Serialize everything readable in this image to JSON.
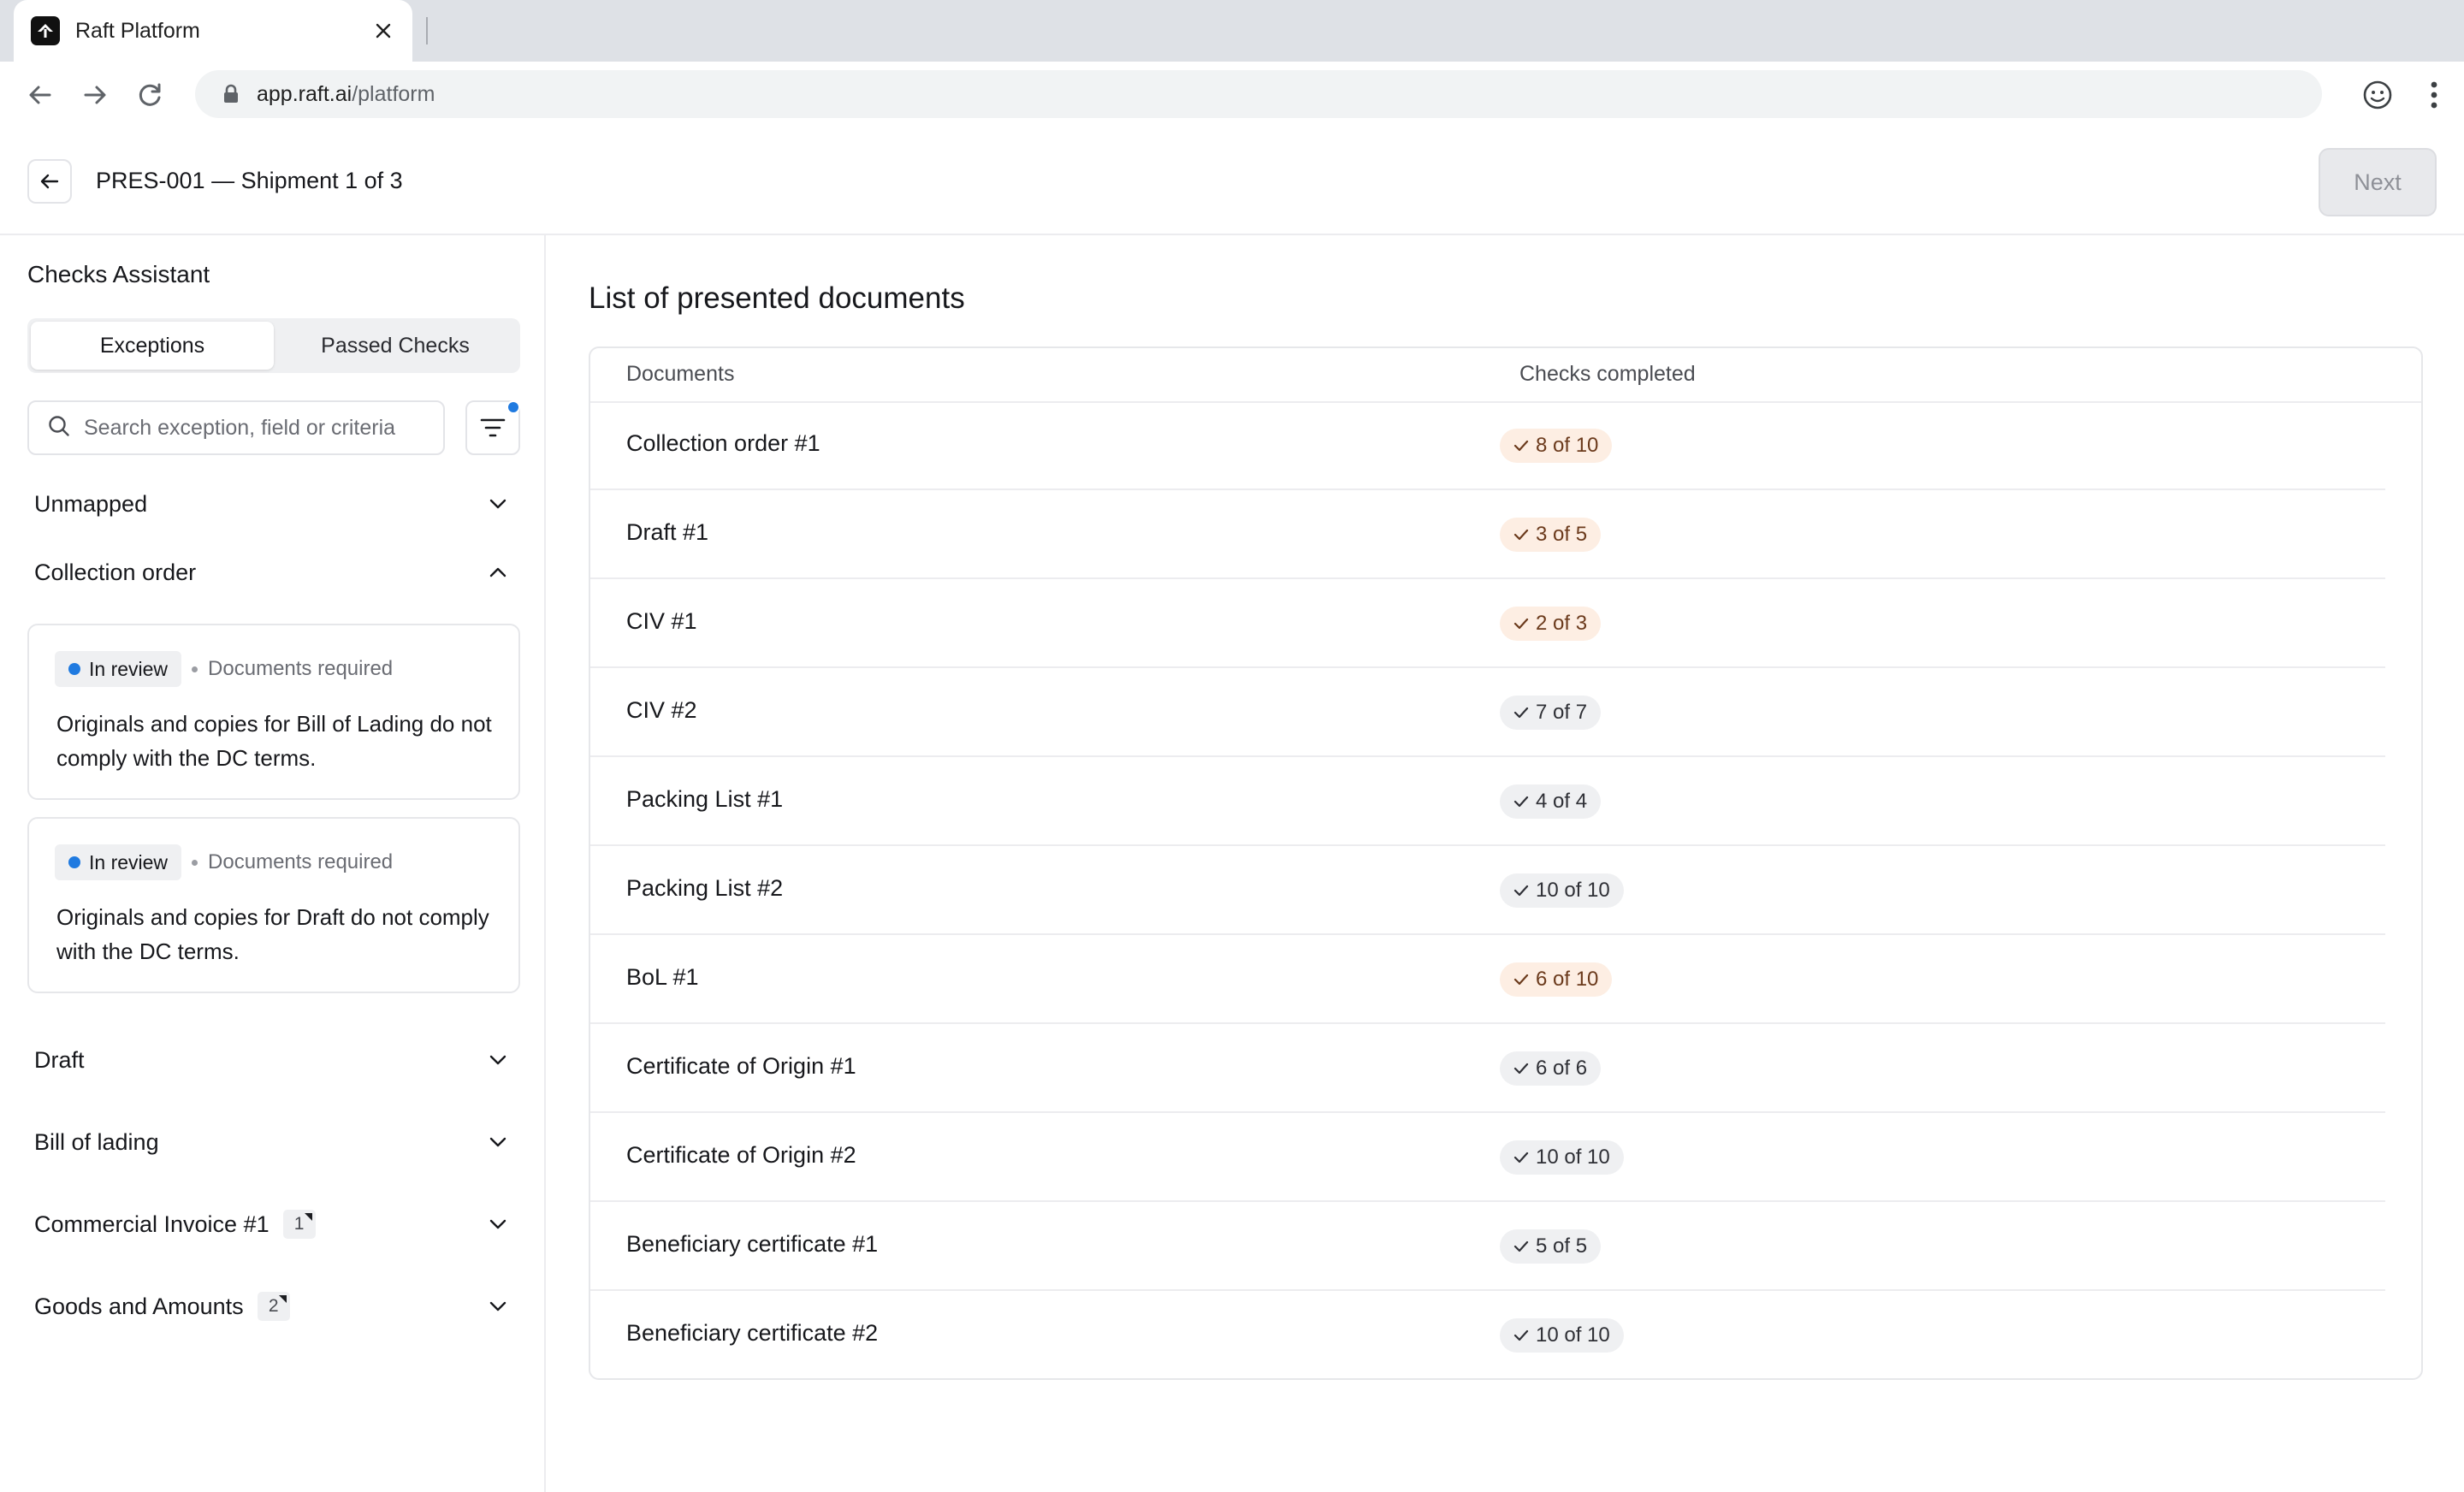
{
  "browser": {
    "tab_title": "Raft Platform",
    "url_host": "app.raft.ai",
    "url_path": "/platform"
  },
  "header": {
    "title": "PRES-001 — Shipment 1 of 3",
    "next_label": "Next"
  },
  "sidebar": {
    "title": "Checks Assistant",
    "tabs": [
      {
        "label": "Exceptions",
        "active": true
      },
      {
        "label": "Passed Checks",
        "active": false
      }
    ],
    "search_placeholder": "Search exception, field or criteria",
    "sections": [
      {
        "label": "Unmapped",
        "expanded": false
      },
      {
        "label": "Collection order",
        "expanded": true
      },
      {
        "label": "Draft",
        "expanded": false
      },
      {
        "label": "Bill of lading",
        "expanded": false
      },
      {
        "label": "Commercial Invoice #1",
        "count": "1",
        "expanded": false
      },
      {
        "label": "Goods and Amounts",
        "count": "2",
        "expanded": false
      }
    ],
    "cards": [
      {
        "status": "In review",
        "category": "Documents required",
        "text": "Originals and copies for Bill of Lading do not comply with the DC terms."
      },
      {
        "status": "In review",
        "category": "Documents required",
        "text": "Originals and copies for Draft do not comply with the DC terms."
      }
    ]
  },
  "main": {
    "title": "List of presented documents",
    "columns": [
      "Documents",
      "Checks completed"
    ],
    "rows": [
      {
        "document": "Collection order #1",
        "checks": "8 of 10",
        "state": "partial"
      },
      {
        "document": "Draft #1",
        "checks": "3 of 5",
        "state": "partial"
      },
      {
        "document": "CIV #1",
        "checks": "2 of 3",
        "state": "partial"
      },
      {
        "document": "CIV #2",
        "checks": "7 of 7",
        "state": "complete"
      },
      {
        "document": "Packing List #1",
        "checks": "4 of 4",
        "state": "complete"
      },
      {
        "document": "Packing List #2",
        "checks": "10 of 10",
        "state": "complete"
      },
      {
        "document": "BoL #1",
        "checks": "6 of 10",
        "state": "partial"
      },
      {
        "document": "Certificate of Origin #1",
        "checks": "6 of 6",
        "state": "complete"
      },
      {
        "document": "Certificate of Origin #2",
        "checks": "10 of 10",
        "state": "complete"
      },
      {
        "document": "Beneficiary certificate #1",
        "checks": "5 of 5",
        "state": "complete"
      },
      {
        "document": "Beneficiary certificate #2",
        "checks": "10 of 10",
        "state": "complete"
      }
    ]
  },
  "colors": {
    "accent_blue": "#1f7ae0",
    "partial_badge_bg": "#fdeee3",
    "complete_badge_bg": "#eff0f2"
  }
}
